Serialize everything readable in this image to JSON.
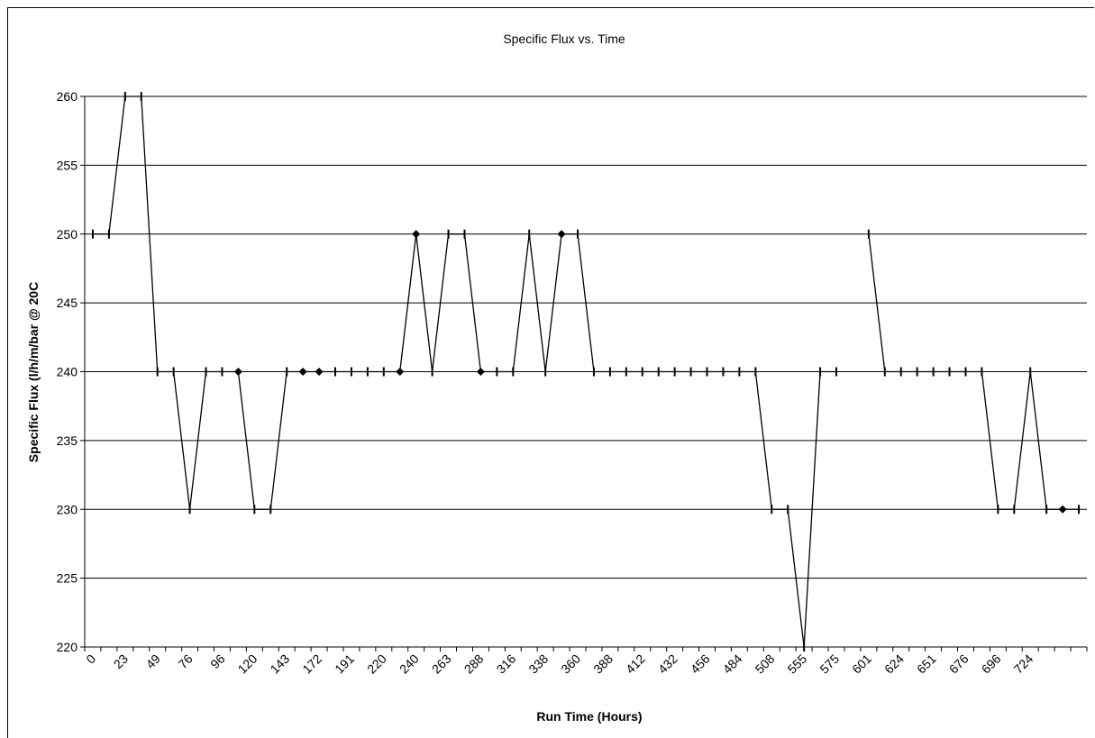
{
  "chart_data": {
    "type": "line",
    "title": "Specific Flux vs. Time",
    "xlabel": "Run Time (Hours)",
    "ylabel": "Specific Flux (l/h/m/bar @ 20C",
    "ylim": [
      220,
      260
    ],
    "yticks": [
      220,
      225,
      230,
      235,
      240,
      245,
      250,
      255,
      260
    ],
    "x_tick_labels": [
      "0",
      "23",
      "49",
      "76",
      "96",
      "120",
      "143",
      "172",
      "191",
      "220",
      "240",
      "263",
      "288",
      "316",
      "338",
      "360",
      "388",
      "412",
      "432",
      "456",
      "484",
      "508",
      "555",
      "575",
      "601",
      "624",
      "651",
      "676",
      "696",
      "724"
    ],
    "grid": "horizontal",
    "legend": "none",
    "line_color": "#000000",
    "series": [
      {
        "values": [
          250,
          250,
          260,
          260,
          240,
          240,
          230,
          240,
          240,
          240,
          230,
          230,
          240,
          240,
          240,
          240,
          240,
          240,
          240,
          240,
          250,
          240,
          250,
          250,
          240,
          240,
          240,
          250,
          240,
          250,
          250,
          240,
          240,
          240,
          240,
          240,
          240,
          240,
          240,
          240,
          240,
          240,
          230,
          230,
          220,
          240,
          240,
          null,
          250,
          240,
          240,
          240,
          240,
          240,
          240,
          240,
          230,
          230,
          240,
          230,
          230,
          230
        ],
        "markers": [
          "dash",
          "dash",
          "dash",
          "dash",
          "dash",
          "dash",
          "dash",
          "dash",
          "dash",
          "diamond",
          "dash",
          "dash",
          "dash",
          "diamond",
          "diamond",
          "dash",
          "dash",
          "dash",
          "dash",
          "diamond",
          "diamond",
          "dash",
          "dash",
          "dash",
          "diamond",
          "dash",
          "dash",
          "dash",
          "dash",
          "diamond",
          "dash",
          "dash",
          "dash",
          "dash",
          "dash",
          "dash",
          "dash",
          "dash",
          "dash",
          "dash",
          "dash",
          "dash",
          "dash",
          "dash",
          "dash",
          "dash",
          "dash",
          "none",
          "dash",
          "dash",
          "dash",
          "dash",
          "dash",
          "dash",
          "dash",
          "dash",
          "dash",
          "dash",
          "dash",
          "dash",
          "diamond",
          "dash"
        ]
      }
    ]
  }
}
